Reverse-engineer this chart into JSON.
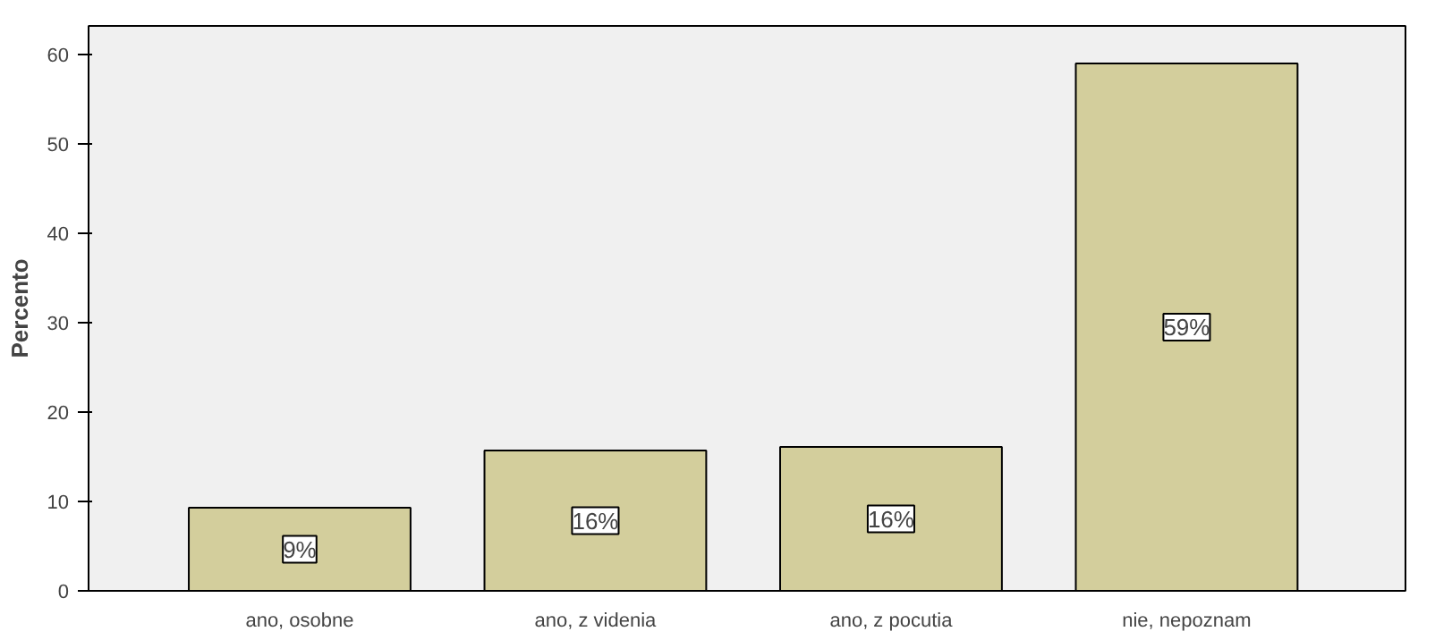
{
  "chart_data": {
    "type": "bar",
    "ylabel": "Percento",
    "categories": [
      "ano, osobne",
      "ano, z videnia",
      "ano, z pocutia",
      "nie, nepoznam"
    ],
    "values": [
      9.3,
      15.7,
      16.1,
      59.0
    ],
    "value_labels": [
      "9%",
      "16%",
      "16%",
      "59%"
    ],
    "color": "#d3ce9c",
    "ylim": [
      0,
      63.2
    ],
    "yticks": [
      0,
      10,
      20,
      30,
      40,
      50,
      60
    ],
    "grid": false
  }
}
